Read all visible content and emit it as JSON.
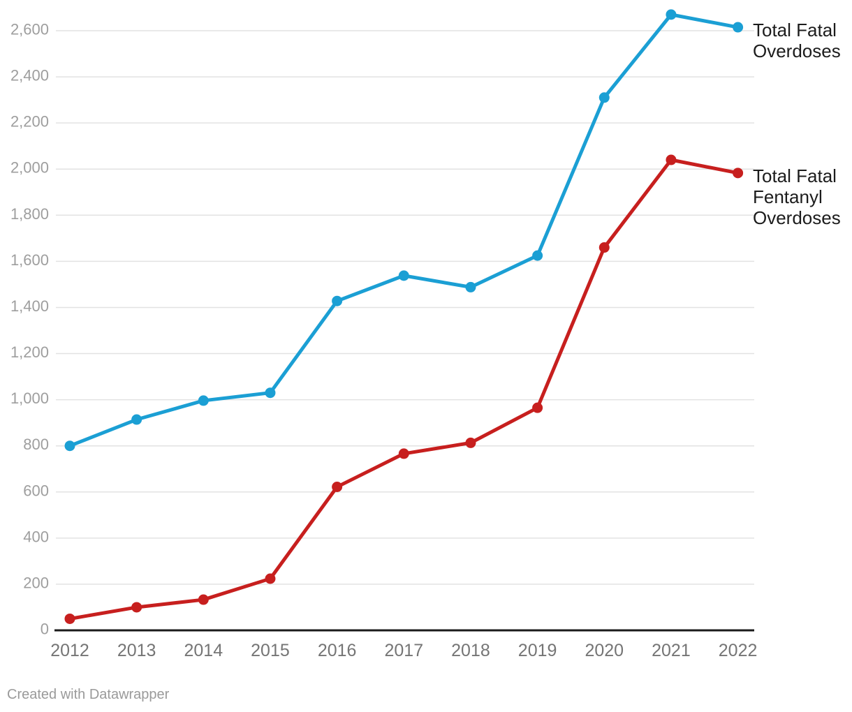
{
  "chart_data": {
    "type": "line",
    "title": "",
    "xlabel": "",
    "ylabel": "",
    "x": [
      "2012",
      "2013",
      "2014",
      "2015",
      "2016",
      "2017",
      "2018",
      "2019",
      "2020",
      "2021",
      "2022"
    ],
    "series": [
      {
        "name": "Total Fatal Overdoses",
        "label_lines": [
          "Total Fatal",
          "Overdoses"
        ],
        "color": "#1b9fd4",
        "values": [
          800,
          914,
          996,
          1030,
          1428,
          1538,
          1488,
          1625,
          2310,
          2670,
          2615
        ]
      },
      {
        "name": "Total Fatal Fentanyl Overdoses",
        "label_lines": [
          "Total Fatal",
          "Fentanyl",
          "Overdoses"
        ],
        "color": "#c71f1e",
        "values": [
          50,
          100,
          133,
          224,
          622,
          766,
          813,
          965,
          1660,
          2040,
          1983
        ]
      }
    ],
    "ylim": [
      0,
      2600
    ],
    "ytick_step": 200,
    "ytick_labels": [
      "0",
      "200",
      "400",
      "600",
      "800",
      "1,000",
      "1,200",
      "1,400",
      "1,600",
      "1,800",
      "2,000",
      "2,200",
      "2,400",
      "2,600"
    ],
    "grid": true,
    "legend_position": "right-of-last-point"
  },
  "colors": {
    "background": "#ffffff",
    "grid": "#e2e2e2",
    "axis": "#1a1a1a",
    "y_tick_text": "#9e9e9e",
    "x_tick_text": "#757575",
    "legend_text": "#1c1c1c",
    "credit_text": "#9a9a9a",
    "series_blue": "#1b9fd4",
    "series_red": "#c71f1e"
  },
  "footer": {
    "credit": "Created with Datawrapper"
  }
}
